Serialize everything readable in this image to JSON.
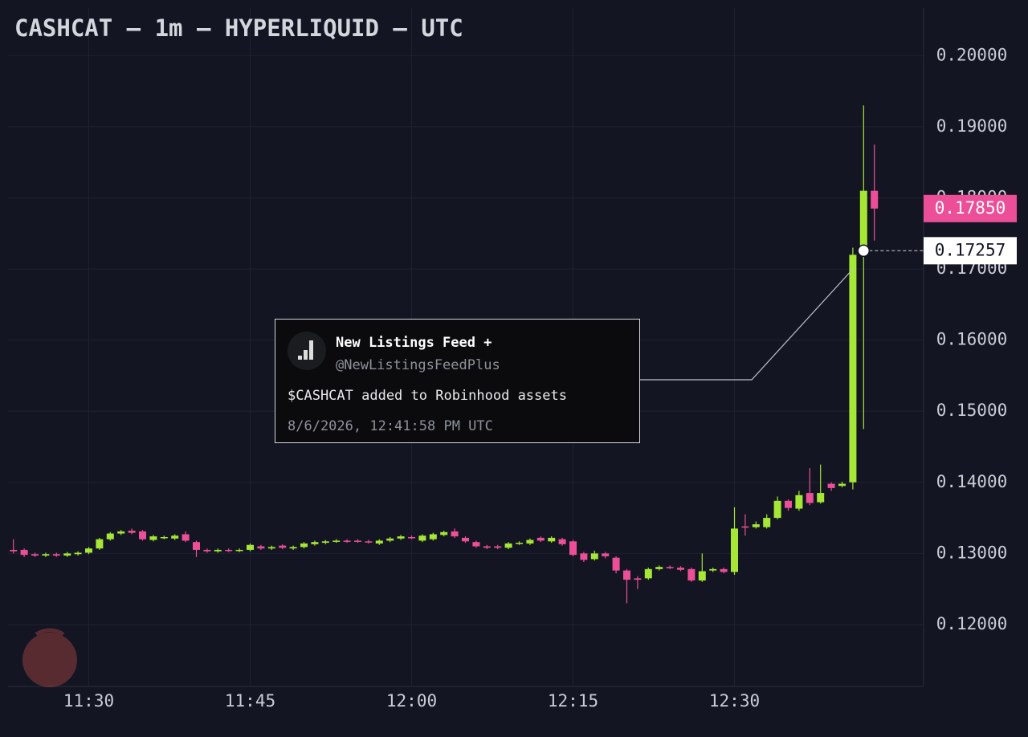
{
  "chart_data": {
    "type": "candlestick",
    "title": "CASHCAT — 1m — HYPERLIQUID — UTC",
    "categories": [
      null,
      null,
      null,
      null,
      null,
      null,
      null,
      "11:30",
      null,
      null,
      null,
      null,
      null,
      null,
      null,
      null,
      null,
      null,
      null,
      null,
      null,
      null,
      "11:45",
      null,
      null,
      null,
      null,
      null,
      null,
      null,
      null,
      null,
      null,
      null,
      null,
      null,
      null,
      "12:00",
      null,
      null,
      null,
      null,
      null,
      null,
      null,
      null,
      null,
      null,
      null,
      null,
      null,
      null,
      "12:15",
      null,
      null,
      null,
      null,
      null,
      null,
      null,
      null,
      null,
      null,
      null,
      null,
      null,
      null,
      "12:30",
      null,
      null,
      null,
      null,
      null,
      null,
      null,
      null,
      null,
      null,
      null,
      null,
      null
    ],
    "open": [
      0.1305,
      0.1305,
      0.1299,
      0.1297,
      0.1299,
      0.1297,
      0.1299,
      0.1301,
      0.1307,
      0.132,
      0.1328,
      0.1332,
      0.1331,
      0.1319,
      0.1322,
      0.1321,
      0.1327,
      0.1316,
      0.1305,
      0.1303,
      0.1305,
      0.1304,
      0.1305,
      0.131,
      0.1307,
      0.1311,
      0.1307,
      0.1309,
      0.1313,
      0.1315,
      0.1317,
      0.1318,
      0.1318,
      0.1317,
      0.1314,
      0.1318,
      0.1321,
      0.1323,
      0.1318,
      0.132,
      0.1326,
      0.1331,
      0.1322,
      0.1316,
      0.131,
      0.131,
      0.1308,
      0.1314,
      0.1314,
      0.1322,
      0.1317,
      0.132,
      0.1317,
      0.13,
      0.1292,
      0.13,
      0.1294,
      0.1276,
      0.1265,
      0.1265,
      0.1278,
      0.1281,
      0.128,
      0.1278,
      0.1262,
      0.1276,
      0.1278,
      0.1274,
      0.1338,
      0.1337,
      0.1337,
      0.135,
      0.1374,
      0.1363,
      0.1385,
      0.1372,
      0.1398,
      0.1395,
      0.14,
      0.1725,
      0.181
    ],
    "high": [
      0.132,
      0.1307,
      0.1301,
      0.1301,
      0.1301,
      0.1302,
      0.1303,
      0.1309,
      0.1322,
      0.133,
      0.1333,
      0.1335,
      0.1333,
      0.1326,
      0.1325,
      0.1327,
      0.1331,
      0.1318,
      0.1307,
      0.1307,
      0.1307,
      0.1307,
      0.1314,
      0.1312,
      0.1311,
      0.1313,
      0.1311,
      0.1316,
      0.1318,
      0.1319,
      0.132,
      0.132,
      0.132,
      0.1319,
      0.132,
      0.1323,
      0.1326,
      0.1325,
      0.1327,
      0.1329,
      0.1332,
      0.1335,
      0.1324,
      0.1318,
      0.1312,
      0.1312,
      0.1316,
      0.1317,
      0.1321,
      0.1324,
      0.1324,
      0.1322,
      0.1319,
      0.1302,
      0.1304,
      0.1302,
      0.1296,
      0.1278,
      0.1268,
      0.128,
      0.1283,
      0.1283,
      0.1282,
      0.128,
      0.13,
      0.128,
      0.128,
      0.1365,
      0.1355,
      0.1345,
      0.1355,
      0.138,
      0.1376,
      0.1388,
      0.142,
      0.1425,
      0.14,
      0.1401,
      0.173,
      0.193,
      0.1875
    ],
    "low": [
      0.13,
      0.1295,
      0.1295,
      0.1295,
      0.1295,
      0.1295,
      0.1297,
      0.1299,
      0.1305,
      0.1318,
      0.1326,
      0.1327,
      0.1318,
      0.1317,
      0.132,
      0.1319,
      0.1316,
      0.1295,
      0.1301,
      0.1301,
      0.1302,
      0.1302,
      0.1303,
      0.1305,
      0.1305,
      0.1306,
      0.1305,
      0.1307,
      0.1311,
      0.1313,
      0.1315,
      0.1315,
      0.1315,
      0.1314,
      0.1312,
      0.1316,
      0.1319,
      0.132,
      0.1316,
      0.1318,
      0.1324,
      0.1322,
      0.1315,
      0.1308,
      0.1306,
      0.1306,
      0.1306,
      0.1312,
      0.1312,
      0.1316,
      0.1315,
      0.1311,
      0.1296,
      0.1288,
      0.129,
      0.1293,
      0.1272,
      0.123,
      0.125,
      0.1263,
      0.1276,
      0.1278,
      0.1275,
      0.126,
      0.126,
      0.1274,
      0.1272,
      0.127,
      0.1325,
      0.1335,
      0.1335,
      0.1348,
      0.136,
      0.136,
      0.1368,
      0.137,
      0.1388,
      0.1393,
      0.139,
      0.1475,
      0.174
    ],
    "close": [
      0.1303,
      0.1298,
      0.1297,
      0.1299,
      0.1297,
      0.13,
      0.1301,
      0.1307,
      0.132,
      0.1328,
      0.1331,
      0.1329,
      0.132,
      0.1324,
      0.1323,
      0.1325,
      0.1318,
      0.1305,
      0.1303,
      0.1305,
      0.1304,
      0.1305,
      0.1312,
      0.1307,
      0.1309,
      0.1308,
      0.1309,
      0.1314,
      0.1316,
      0.1317,
      0.1318,
      0.1317,
      0.1317,
      0.1316,
      0.1318,
      0.1321,
      0.1324,
      0.1322,
      0.1325,
      0.1327,
      0.133,
      0.1324,
      0.1317,
      0.131,
      0.1308,
      0.1308,
      0.1314,
      0.1315,
      0.1319,
      0.1318,
      0.1322,
      0.1313,
      0.1298,
      0.1291,
      0.13,
      0.1296,
      0.1276,
      0.1263,
      0.1263,
      0.1278,
      0.1281,
      0.128,
      0.1277,
      0.1262,
      0.1275,
      0.1278,
      0.1274,
      0.1335,
      0.1337,
      0.1341,
      0.135,
      0.1374,
      0.1364,
      0.1382,
      0.1371,
      0.1385,
      0.1392,
      0.1398,
      0.172,
      0.181,
      0.1785
    ],
    "up_color": "#a6e635",
    "down_color": "#ec4f98",
    "ylim": [
      0.1113,
      0.2067
    ],
    "yticks": [
      {
        "value": 0.12,
        "label": "0.12000"
      },
      {
        "value": 0.13,
        "label": "0.13000"
      },
      {
        "value": 0.14,
        "label": "0.14000"
      },
      {
        "value": 0.15,
        "label": "0.15000"
      },
      {
        "value": 0.16,
        "label": "0.16000"
      },
      {
        "value": 0.17,
        "label": "0.17000"
      },
      {
        "value": 0.18,
        "label": "0.18000"
      },
      {
        "value": 0.19,
        "label": "0.19000"
      },
      {
        "value": 0.2,
        "label": "0.20000"
      }
    ],
    "grid": true,
    "last_price": {
      "value": 0.1785,
      "label": "0.17850"
    },
    "crosshair": {
      "value": 0.17257,
      "label": "0.17257"
    },
    "annotation": {
      "author": "New Listings Feed +",
      "handle": "@NewListingsFeedPlus",
      "text": "$CASHCAT added to Robinhood assets",
      "timestamp": "8/6/2026, 12:41:58 PM UTC"
    }
  }
}
